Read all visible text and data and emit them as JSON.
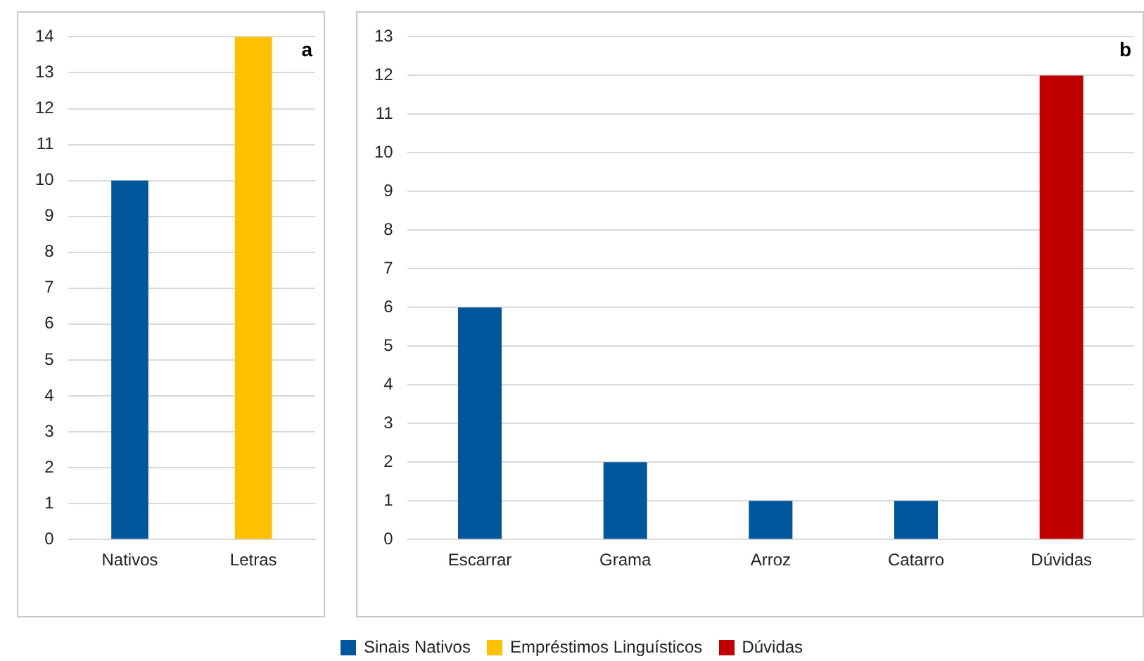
{
  "chart_data": [
    {
      "type": "bar",
      "title": "a",
      "categories": [
        "Nativos",
        "Letras"
      ],
      "stacked": true,
      "series": [
        {
          "name": "Sinais Nativos",
          "color": "#00579c",
          "values": [
            10,
            null
          ]
        },
        {
          "name": "Empréstimos Linguísticos",
          "color": "#ffc000",
          "values": [
            null,
            14
          ]
        }
      ],
      "ylim": [
        0,
        14
      ],
      "yticks": [
        0,
        1,
        2,
        3,
        4,
        5,
        6,
        7,
        8,
        9,
        10,
        11,
        12,
        13,
        14
      ],
      "grid": "y",
      "legend": "bottom"
    },
    {
      "type": "bar",
      "title": "b",
      "categories": [
        "Escarrar",
        "Grama",
        "Arroz",
        "Catarro",
        "Dúvidas"
      ],
      "stacked": true,
      "series": [
        {
          "name": "Sinais Nativos",
          "color": "#00579c",
          "values": [
            6,
            2,
            1,
            1,
            null
          ]
        },
        {
          "name": "Dúvidas",
          "color": "#c00000",
          "values": [
            null,
            null,
            null,
            null,
            12
          ]
        }
      ],
      "ylim": [
        0,
        13
      ],
      "yticks": [
        0,
        1,
        2,
        3,
        4,
        5,
        6,
        7,
        8,
        9,
        10,
        11,
        12,
        13
      ],
      "grid": "y",
      "legend": "bottom"
    }
  ]
}
